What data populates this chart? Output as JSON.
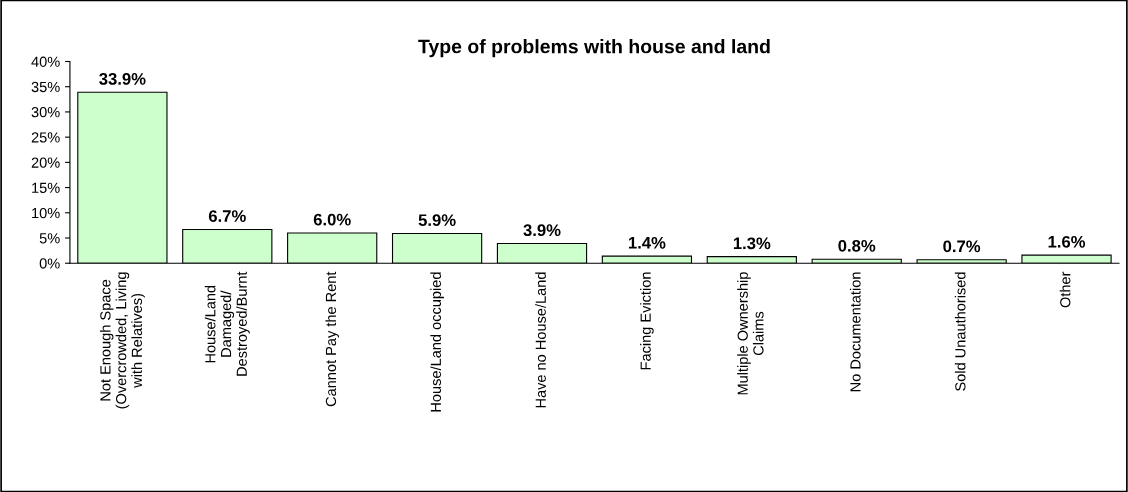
{
  "chart_data": {
    "type": "bar",
    "title": "Type of problems with house and land",
    "categories": [
      "Not Enough Space\n(Overcrowded, Living\nwith Relatives)",
      "House/Land\nDamaged/\nDestroyed/Burnt",
      "Cannot Pay the Rent",
      "House/Land occupied",
      "Have no House/Land",
      "Facing Eviction",
      "Multiple Ownership\nClaims",
      "No Documentation",
      "Sold Unauthorised",
      "Other"
    ],
    "values": [
      33.9,
      6.7,
      6.0,
      5.9,
      3.9,
      1.4,
      1.3,
      0.8,
      0.7,
      1.6
    ],
    "value_labels": [
      "33.9%",
      "6.7%",
      "6.0%",
      "5.9%",
      "3.9%",
      "1.4%",
      "1.3%",
      "0.8%",
      "0.7%",
      "1.6%"
    ],
    "color": "#ccffcc",
    "ylim": [
      0,
      40
    ],
    "yticks": [
      {
        "value": 0,
        "label": "0%"
      },
      {
        "value": 5,
        "label": "5%"
      },
      {
        "value": 10,
        "label": "10%"
      },
      {
        "value": 15,
        "label": "15%"
      },
      {
        "value": 20,
        "label": "20%"
      },
      {
        "value": 25,
        "label": "25%"
      },
      {
        "value": 30,
        "label": "30%"
      },
      {
        "value": 35,
        "label": "35%"
      },
      {
        "value": 40,
        "label": "40%"
      }
    ],
    "grid": false,
    "legend": false
  }
}
